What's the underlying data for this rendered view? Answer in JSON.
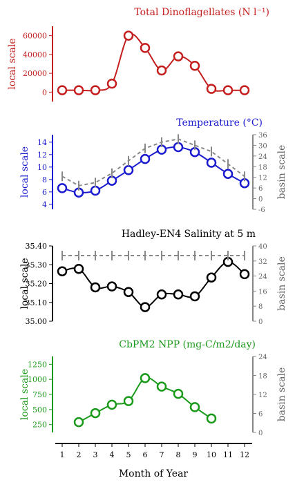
{
  "chart_data": [
    {
      "type": "line",
      "title": "Total Dinoflagellates (N l⁻¹)",
      "title_color": "#c41e1e",
      "color": "#c41e1e",
      "left_axis": {
        "label": "local scale",
        "ticks": [
          0,
          20000,
          40000,
          60000
        ],
        "ylim": [
          -10000,
          70000
        ]
      },
      "right_axis": null,
      "x": [
        1,
        2,
        3,
        4,
        5,
        6,
        7,
        8,
        9,
        10,
        11,
        12
      ],
      "series": [
        {
          "values": [
            2000,
            2000,
            2000,
            9000,
            60000,
            47000,
            23000,
            38000,
            28000,
            3500,
            2000,
            2000
          ],
          "style": "solid",
          "markers": "circle"
        }
      ]
    },
    {
      "type": "line",
      "title": "Temperature (°C)",
      "title_color": "#1a1ad0",
      "color": "#1a1ad0",
      "left_axis": {
        "label": "local scale",
        "ticks": [
          4,
          6,
          8,
          10,
          12,
          14
        ],
        "ylim": [
          3.2,
          15.2
        ]
      },
      "right_axis": {
        "label": "basin scale",
        "ticks": [
          -6,
          0,
          6,
          12,
          18,
          24,
          30,
          36
        ],
        "ylim": [
          -6,
          36
        ]
      },
      "x": [
        1,
        2,
        3,
        4,
        5,
        6,
        7,
        8,
        9,
        10,
        11,
        12
      ],
      "series": [
        {
          "values": [
            6.6,
            5.9,
            6.2,
            7.8,
            9.5,
            11.3,
            12.8,
            13.2,
            12.4,
            10.7,
            8.9,
            7.4
          ],
          "style": "solid",
          "markers": "circle",
          "axis": "left"
        },
        {
          "values": [
            8.5,
            7.0,
            7.5,
            9.0,
            11.0,
            13.0,
            14.0,
            14.5,
            13.5,
            12.5,
            10.5,
            8.5
          ],
          "style": "dashed",
          "markers": "errorbar",
          "axis": "right",
          "color": "#888888"
        }
      ]
    },
    {
      "type": "line",
      "title": "Hadley-EN4 Salinity at 5 m",
      "title_color": "#000000",
      "color": "#000000",
      "left_axis": {
        "label": "local scale",
        "ticks": [
          "35.00",
          "35.10",
          "35.20",
          "35.30",
          "35.40"
        ],
        "ylim": [
          35.0,
          35.4
        ]
      },
      "right_axis": {
        "label": "basin scale",
        "ticks": [
          0,
          8,
          16,
          24,
          32,
          40
        ],
        "ylim": [
          0,
          40
        ]
      },
      "x": [
        1,
        2,
        3,
        4,
        5,
        6,
        7,
        8,
        9,
        10,
        11,
        12
      ],
      "series": [
        {
          "values": [
            35.265,
            35.278,
            35.18,
            35.185,
            35.155,
            35.075,
            35.142,
            35.142,
            35.132,
            35.232,
            35.315,
            35.25
          ],
          "style": "solid",
          "markers": "circle",
          "axis": "left"
        },
        {
          "values": [
            35.5,
            35.5,
            35.5,
            35.5,
            35.5,
            35.5,
            35.5,
            35.5,
            35.5,
            35.5,
            35.5,
            35.5
          ],
          "style": "dashed",
          "markers": "errorbar",
          "axis": "right",
          "color": "#888888"
        }
      ]
    },
    {
      "type": "line",
      "title": "CbPM2 NPP (mg-C/m2/day)",
      "title_color": "#1a9a1a",
      "color": "#1a9a1a",
      "left_axis": {
        "label": "local scale",
        "ticks": [
          250,
          500,
          750,
          1000,
          1250
        ],
        "ylim": [
          120,
          1380
        ]
      },
      "right_axis": {
        "label": "basin scale",
        "ticks": [
          0,
          6,
          12,
          18,
          24
        ],
        "ylim": [
          0,
          24
        ]
      },
      "x": [
        2,
        3,
        4,
        5,
        6,
        7,
        8,
        9,
        10
      ],
      "series": [
        {
          "values": [
            290,
            440,
            580,
            640,
            1020,
            880,
            760,
            540,
            350
          ],
          "style": "solid",
          "markers": "circle",
          "axis": "left"
        }
      ]
    }
  ],
  "x_axis": {
    "label": "Month of Year",
    "ticks": [
      1,
      2,
      3,
      4,
      5,
      6,
      7,
      8,
      9,
      10,
      11,
      12
    ]
  }
}
